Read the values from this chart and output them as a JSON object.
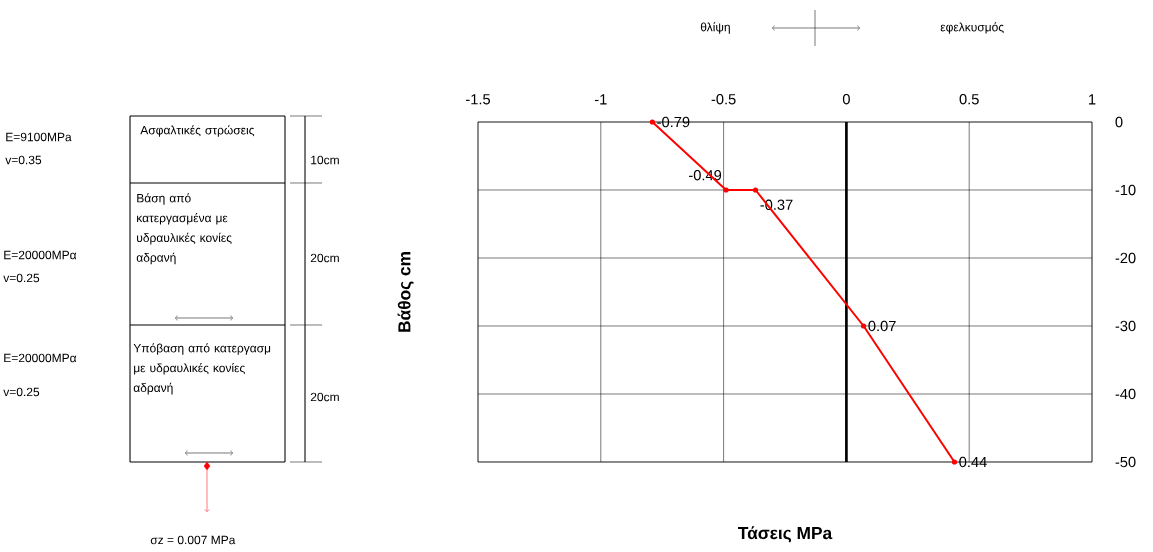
{
  "chart_data": {
    "type": "line",
    "xlabel": "Τάσεις MPa",
    "ylabel": "Βάθος cm",
    "series": [
      {
        "color": "#ff0000",
        "x": [
          -0.79,
          -0.49,
          -0.37,
          0.07,
          0.44
        ],
        "values": [
          0,
          -10,
          -10,
          -30,
          -50
        ]
      }
    ],
    "xlim": [
      -1.5,
      1
    ],
    "ylim": [
      -50,
      0
    ],
    "xticks": [
      -1.5,
      -1,
      -0.5,
      0,
      0.5,
      1
    ],
    "yticks": [
      -50,
      -40,
      -30,
      -20,
      -10,
      0
    ],
    "grid": true,
    "marker": "circle",
    "line_style": "solid",
    "ref_lines": [
      {
        "axis": "x",
        "value": 0,
        "color": "#000000"
      }
    ],
    "annotations": [
      "E=9100MPa",
      "v=0.35",
      "Ασφαλτικές στρώσεις",
      "10cm",
      "E=20000MPα",
      "v=0.25",
      "Βάση από κατεργασμένα με υδραυλικές κονίες αδρανή",
      "20cm",
      "E=20000MPα",
      "v=0.25",
      "Υπόβαση από κατεργασμ με υδραυλικές κονίες αδρανή",
      "20cm",
      "σz = 0.007 MPa",
      "θλίψη",
      "εφελκυσμός",
      {
        "text": "-0.79",
        "x": -0.79,
        "y": 0
      },
      {
        "text": "-0.49",
        "x": -0.49,
        "y": -10
      },
      {
        "text": "-0.37",
        "x": -0.37,
        "y": -10
      },
      {
        "text": "0.07",
        "x": 0.07,
        "y": -30
      },
      {
        "text": "0.44",
        "x": 0.44,
        "y": -50
      }
    ]
  }
}
